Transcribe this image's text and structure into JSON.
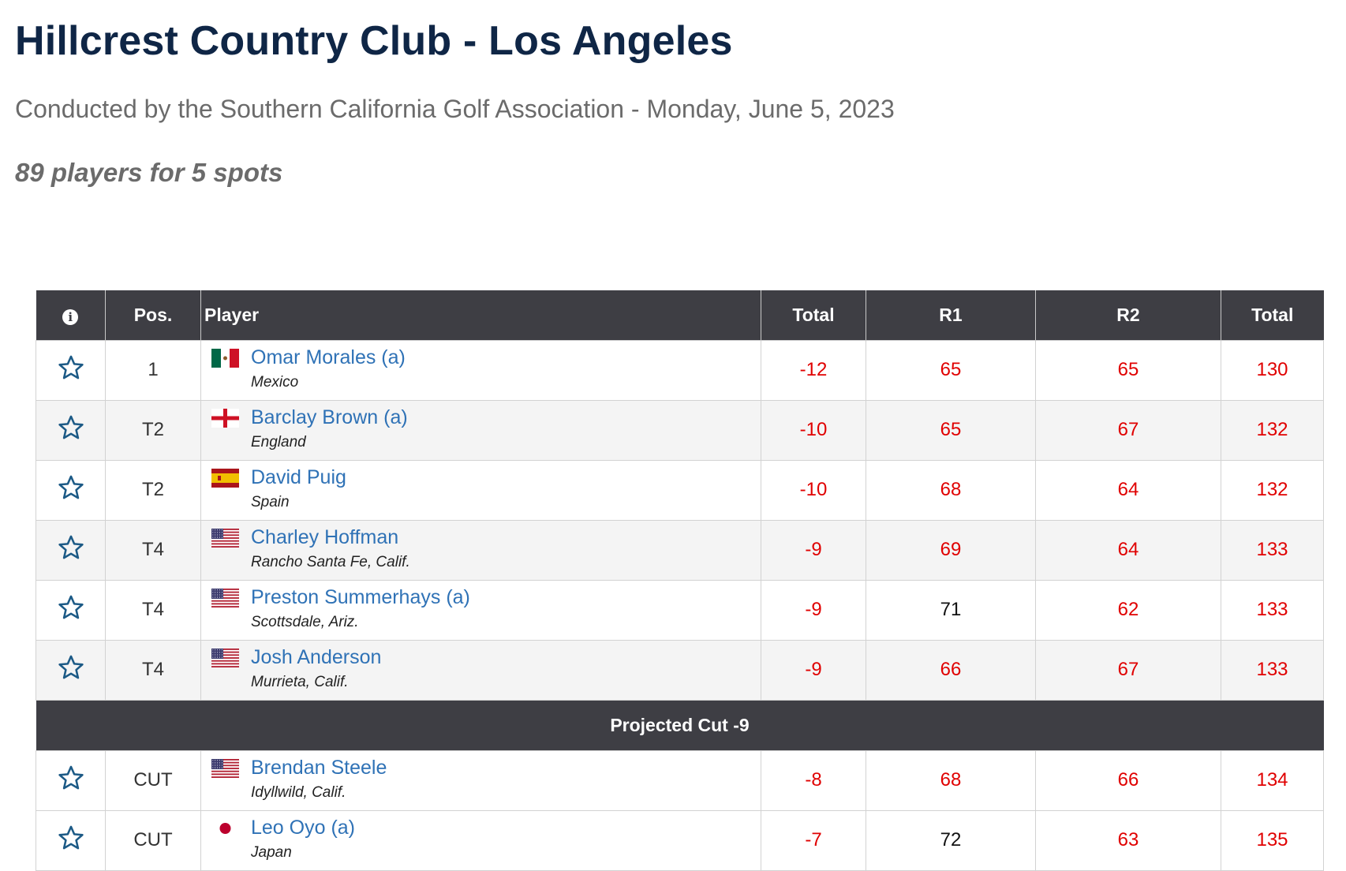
{
  "header": {
    "title": "Hillcrest Country Club - Los Angeles",
    "subtitle": "Conducted by the Southern California Golf Association - Monday, June 5, 2023",
    "field": "89 players for 5 spots"
  },
  "table": {
    "columns": {
      "info_icon": "info-icon",
      "pos": "Pos.",
      "player": "Player",
      "total": "Total",
      "r1": "R1",
      "r2": "R2",
      "total2": "Total"
    },
    "projected_cut_label": "Projected Cut -9",
    "colors": {
      "header_bg": "#3e3e44",
      "under_par": "#e00000",
      "link": "#2f72b6",
      "star": "#1c5a86"
    },
    "players": [
      {
        "pos": "1",
        "name": "Omar Morales (a)",
        "location": "Mexico",
        "flag": "mexico",
        "to_par": "-12",
        "r1": "65",
        "r1_under": true,
        "r2": "65",
        "r2_under": true,
        "total": "130",
        "total_under": true
      },
      {
        "pos": "T2",
        "name": "Barclay Brown (a)",
        "location": "England",
        "flag": "england",
        "to_par": "-10",
        "r1": "65",
        "r1_under": true,
        "r2": "67",
        "r2_under": true,
        "total": "132",
        "total_under": true
      },
      {
        "pos": "T2",
        "name": "David Puig",
        "location": "Spain",
        "flag": "spain",
        "to_par": "-10",
        "r1": "68",
        "r1_under": true,
        "r2": "64",
        "r2_under": true,
        "total": "132",
        "total_under": true
      },
      {
        "pos": "T4",
        "name": "Charley Hoffman",
        "location": "Rancho Santa Fe, Calif.",
        "flag": "usa",
        "to_par": "-9",
        "r1": "69",
        "r1_under": true,
        "r2": "64",
        "r2_under": true,
        "total": "133",
        "total_under": true
      },
      {
        "pos": "T4",
        "name": "Preston Summerhays (a)",
        "location": "Scottsdale, Ariz.",
        "flag": "usa",
        "to_par": "-9",
        "r1": "71",
        "r1_under": false,
        "r2": "62",
        "r2_under": true,
        "total": "133",
        "total_under": true
      },
      {
        "pos": "T4",
        "name": "Josh Anderson",
        "location": "Murrieta, Calif.",
        "flag": "usa",
        "to_par": "-9",
        "r1": "66",
        "r1_under": true,
        "r2": "67",
        "r2_under": true,
        "total": "133",
        "total_under": true
      }
    ],
    "cut_players": [
      {
        "pos": "CUT",
        "name": "Brendan Steele",
        "location": "Idyllwild, Calif.",
        "flag": "usa",
        "to_par": "-8",
        "r1": "68",
        "r1_under": true,
        "r2": "66",
        "r2_under": true,
        "total": "134",
        "total_under": true
      },
      {
        "pos": "CUT",
        "name": "Leo Oyo (a)",
        "location": "Japan",
        "flag": "japan",
        "to_par": "-7",
        "r1": "72",
        "r1_under": false,
        "r2": "63",
        "r2_under": true,
        "total": "135",
        "total_under": true
      }
    ]
  }
}
